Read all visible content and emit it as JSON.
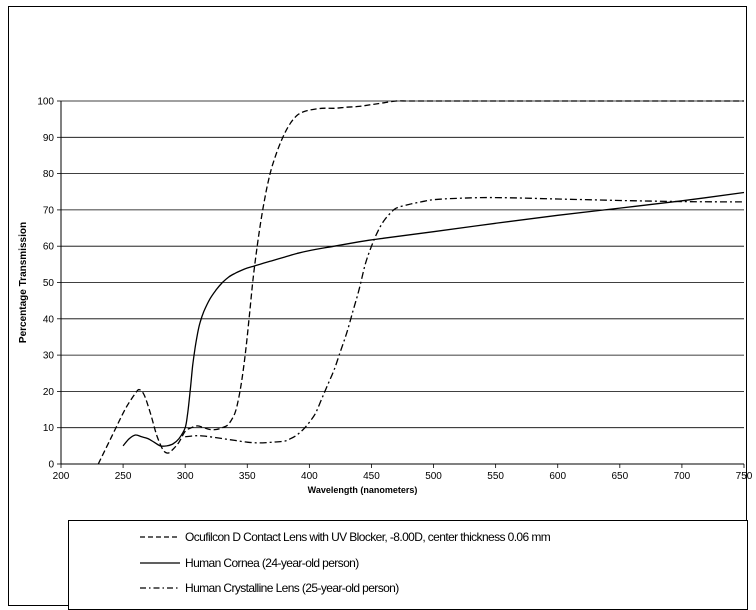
{
  "chart_data": {
    "type": "line",
    "title": "",
    "xlabel": "Wavelength (nanometers)",
    "ylabel": "Percentage Transmission",
    "xlim": [
      200,
      750
    ],
    "ylim": [
      0,
      100
    ],
    "x_ticks": [
      200,
      250,
      300,
      350,
      400,
      450,
      500,
      550,
      600,
      650,
      700,
      750
    ],
    "y_ticks": [
      0,
      10,
      20,
      30,
      40,
      50,
      60,
      70,
      80,
      90,
      100
    ],
    "grid": "horizontal",
    "legend_position": "bottom",
    "series": [
      {
        "name": "Ocufilcon D Contact Lens with UV Blocker, -8.00D, center thickness 0.06 mm",
        "style": "dashed",
        "x": [
          230,
          240,
          250,
          255,
          260,
          263,
          267,
          272,
          277,
          282,
          286,
          290,
          295,
          300,
          305,
          310,
          315,
          320,
          325,
          330,
          335,
          340,
          343,
          346,
          349,
          352,
          355,
          358,
          361,
          364,
          367,
          370,
          375,
          380,
          385,
          390,
          395,
          400,
          410,
          420,
          430,
          440,
          450,
          460,
          470,
          480,
          500,
          600,
          700,
          750
        ],
        "y": [
          0,
          7,
          14,
          17,
          19.5,
          20.5,
          19,
          14,
          8,
          4,
          3,
          4,
          6,
          9,
          10,
          10.5,
          10,
          9.5,
          9.5,
          10,
          11,
          14,
          18,
          24,
          32,
          42,
          52,
          60,
          67,
          73,
          78,
          82,
          87,
          91,
          94,
          96,
          97,
          97.5,
          98,
          98,
          98.3,
          98.5,
          99,
          99.5,
          100,
          100,
          100,
          100,
          100,
          100
        ]
      },
      {
        "name": "Human Cornea (24-year-old person)",
        "style": "solid",
        "x": [
          250,
          255,
          260,
          265,
          270,
          275,
          280,
          285,
          290,
          295,
          300,
          302,
          304,
          306,
          308,
          310,
          312,
          315,
          320,
          325,
          330,
          335,
          340,
          345,
          350,
          355,
          360,
          370,
          380,
          390,
          400,
          420,
          440,
          460,
          500,
          550,
          600,
          650,
          700,
          750
        ],
        "y": [
          5,
          7,
          8,
          7.5,
          7,
          6,
          5,
          5,
          5.5,
          7,
          10,
          14,
          20,
          27,
          32,
          36,
          39,
          42,
          45.5,
          48,
          50,
          51.5,
          52.5,
          53.3,
          54,
          54.5,
          55,
          56,
          57,
          58,
          58.8,
          60,
          61.2,
          62.2,
          64,
          66.3,
          68.5,
          70.5,
          72.5,
          74.8
        ]
      },
      {
        "name": "Human Crystalline Lens (25-year-old person)",
        "style": "dash-dot",
        "x": [
          300,
          310,
          320,
          330,
          340,
          350,
          360,
          370,
          380,
          385,
          390,
          395,
          400,
          405,
          410,
          415,
          420,
          425,
          430,
          435,
          440,
          445,
          450,
          455,
          460,
          465,
          470,
          480,
          490,
          500,
          520,
          550,
          600,
          650,
          700,
          750
        ],
        "y": [
          7.5,
          7.8,
          7.5,
          7,
          6.5,
          6,
          5.8,
          6,
          6.3,
          7,
          8,
          9.5,
          11.5,
          14,
          18,
          22,
          26,
          31,
          36,
          42,
          48,
          55,
          60,
          64,
          67,
          69,
          70.5,
          71.5,
          72.2,
          72.8,
          73.2,
          73.4,
          73,
          72.6,
          72.3,
          72.2
        ]
      }
    ]
  }
}
